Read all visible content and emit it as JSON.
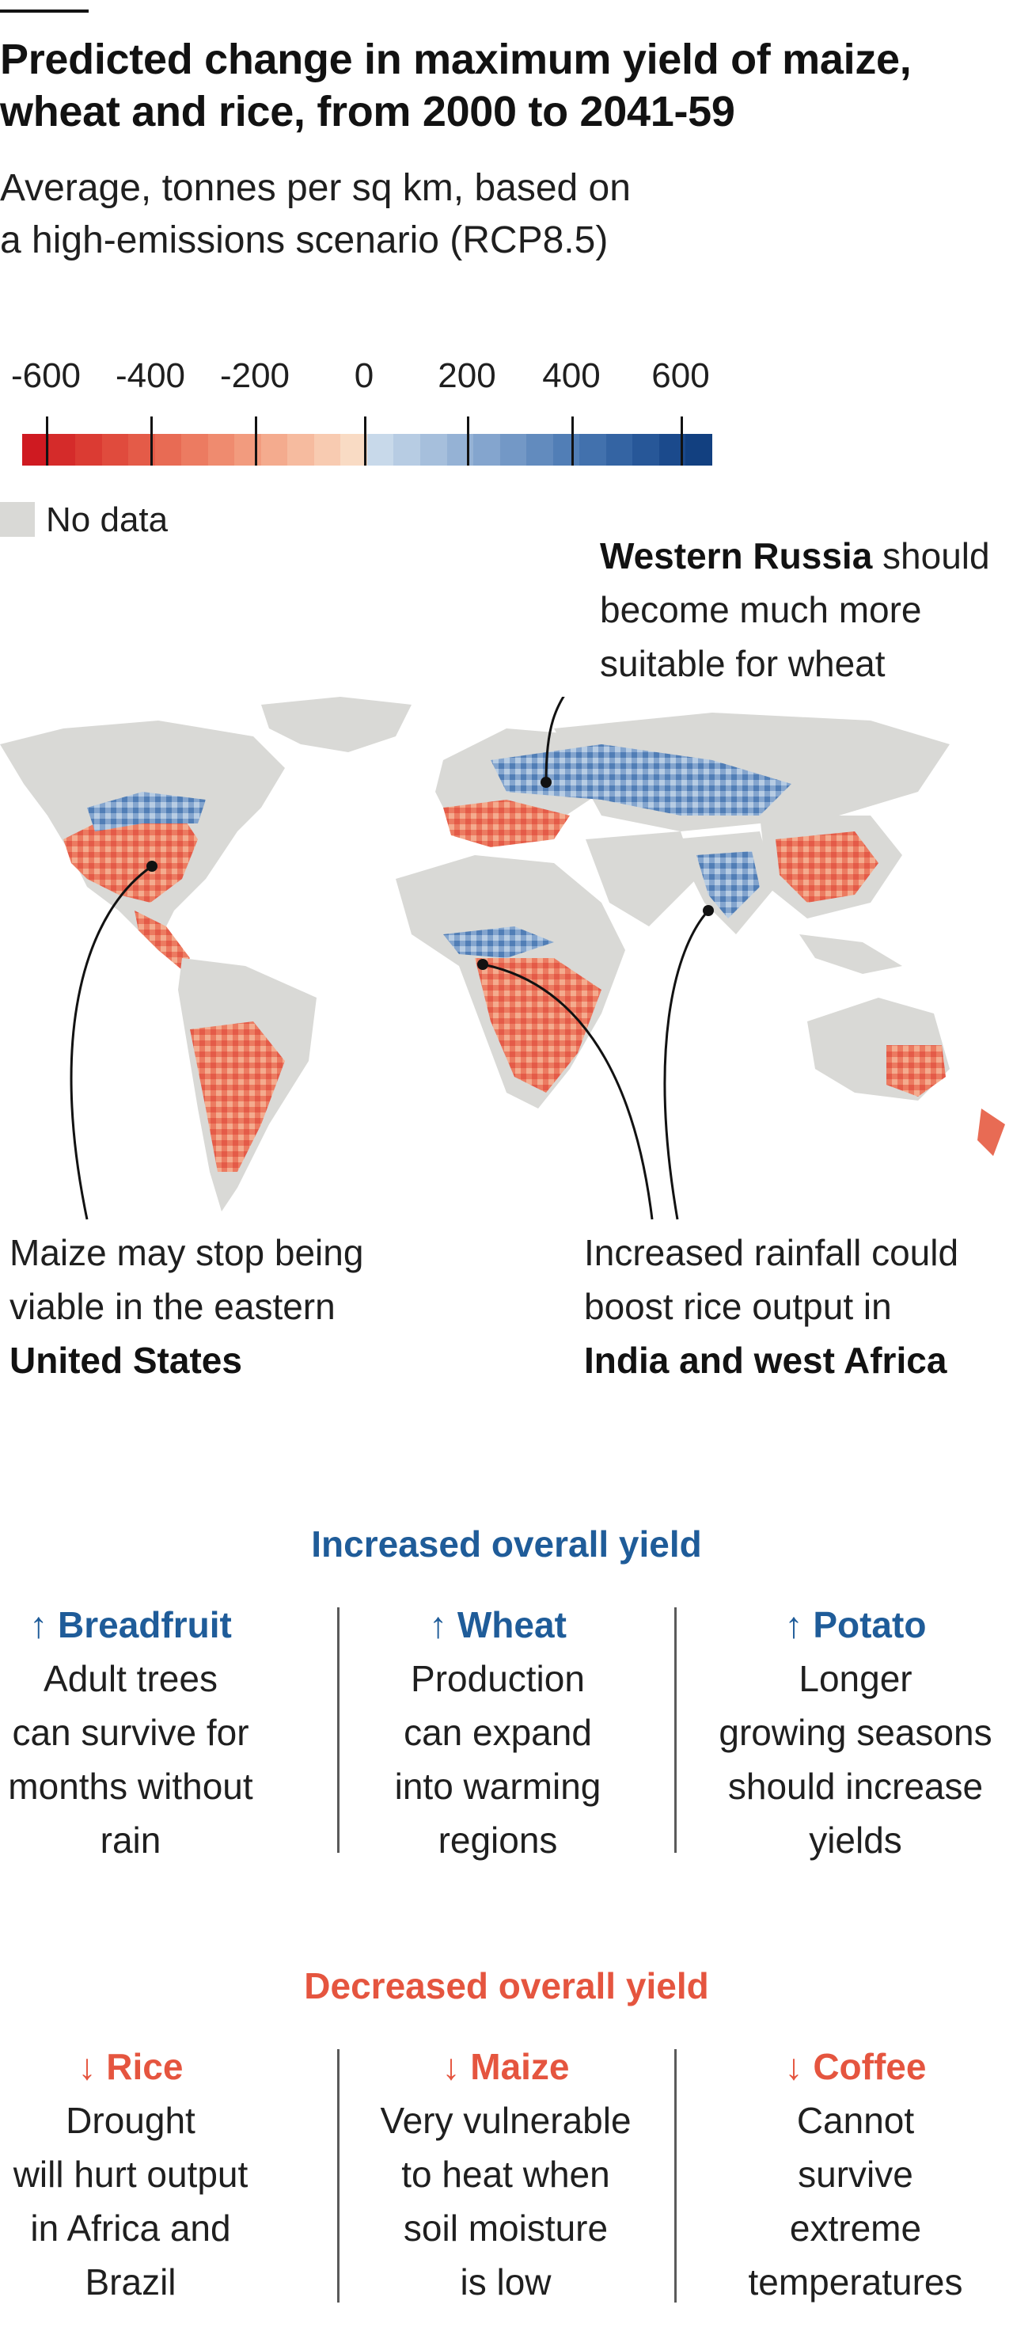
{
  "title_line1": "Predicted change in maximum yield of maize,",
  "title_line2": "wheat and rice, from 2000 to 2041-59",
  "subtitle_line1": "Average, tonnes per sq km, based on",
  "subtitle_line2": "a high-emissions scenario (RCP8.5)",
  "legend": {
    "ticks": [
      "-600",
      "-400",
      "-200",
      "0",
      "200",
      "400",
      "600"
    ],
    "no_data_label": "No data",
    "negative_colors": [
      "#cf1a21",
      "#d52b2a",
      "#db3b33",
      "#e04b3d",
      "#e45b48",
      "#e86b54",
      "#ec7b61",
      "#ef8b6f",
      "#f29b7e",
      "#f4ab8e",
      "#f6bb9f",
      "#f8cbb1",
      "#f9dbc4"
    ],
    "positive_colors": [
      "#c8d9ea",
      "#b7cce3",
      "#a6bfdc",
      "#95b2d5",
      "#84a5ce",
      "#7398c6",
      "#628bbe",
      "#517eb6",
      "#4271ad",
      "#3464a3",
      "#275798",
      "#1b4a8c",
      "#124080"
    ],
    "no_data_color": "#d9d9d6"
  },
  "annotations": {
    "russia": {
      "bold": "Western Russia",
      "rest1": " should",
      "line2": "become much more",
      "line3": "suitable for wheat"
    },
    "us": {
      "line1": "Maize may stop being",
      "line2": "viable in the eastern",
      "bold": "United States"
    },
    "india": {
      "line1": "Increased rainfall could",
      "line2": "boost rice output in",
      "bold": "India and west Africa"
    }
  },
  "increased": {
    "heading": "Increased overall yield",
    "color": "#1f5c99",
    "items": [
      {
        "name": "↑ Breadfruit",
        "lines": [
          "Adult trees",
          "can survive for",
          "months without",
          "rain"
        ]
      },
      {
        "name": "↑ Wheat",
        "lines": [
          "Production",
          "can expand",
          "into warming",
          "regions"
        ]
      },
      {
        "name": "↑ Potato",
        "lines": [
          "Longer",
          "growing seasons",
          "should increase",
          "yields"
        ]
      }
    ]
  },
  "decreased": {
    "heading": "Decreased overall yield",
    "color": "#e5553f",
    "items": [
      {
        "name": "↓ Rice",
        "lines": [
          "Drought",
          "will hurt output",
          "in Africa and",
          "Brazil"
        ]
      },
      {
        "name": "↓ Maize",
        "lines": [
          "Very vulnerable",
          "to heat when",
          "soil moisture",
          "is low"
        ]
      },
      {
        "name": "↓ Coffee",
        "lines": [
          "Cannot",
          "survive",
          "extreme",
          "temperatures"
        ]
      }
    ]
  }
}
